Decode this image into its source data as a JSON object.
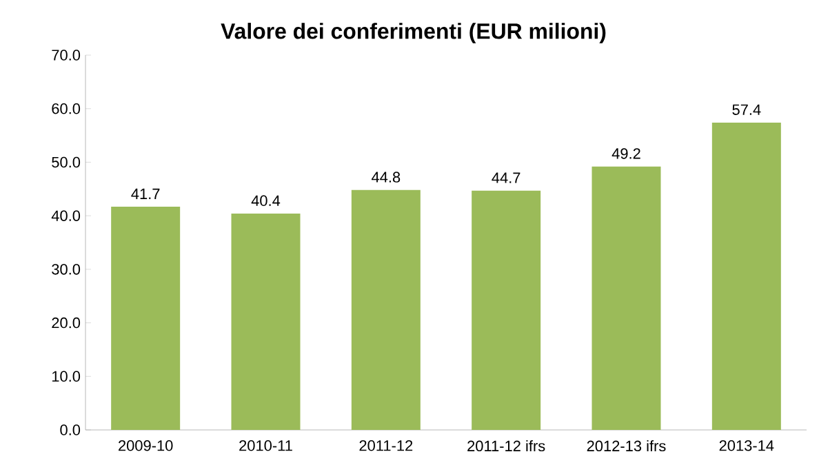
{
  "chart_data": {
    "type": "bar",
    "title": "Valore dei conferimenti (EUR milioni)",
    "categories": [
      "2009-10",
      "2010-11",
      "2011-12",
      "2011-12 ifrs",
      "2012-13 ifrs",
      "2013-14"
    ],
    "values": [
      41.7,
      40.4,
      44.8,
      44.7,
      49.2,
      57.4
    ],
    "color": "#9bbb59",
    "ylim": [
      0,
      70
    ],
    "yticks": [
      {
        "value": 0,
        "label": "0.0"
      },
      {
        "value": 10,
        "label": "10.0"
      },
      {
        "value": 20,
        "label": "20.0"
      },
      {
        "value": 30,
        "label": "30.0"
      },
      {
        "value": 40,
        "label": "40.0"
      },
      {
        "value": 50,
        "label": "50.0"
      },
      {
        "value": 60,
        "label": "60.0"
      },
      {
        "value": 70,
        "label": "70.0"
      }
    ],
    "grid": false,
    "data_labels": true
  }
}
